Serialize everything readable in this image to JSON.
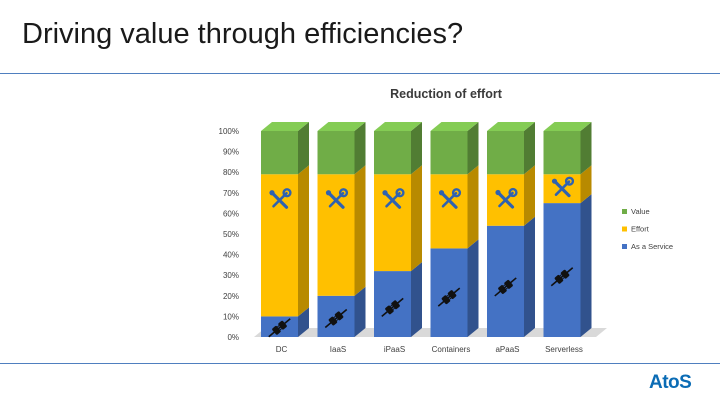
{
  "slide": {
    "title": "Driving value through efficiencies?"
  },
  "logo": {
    "text": "AtoS"
  },
  "colors": {
    "service": "#4472c4",
    "effort": "#ffc000",
    "value": "#70ad47",
    "rule": "#4f7fbf",
    "logo": "#0b6cb5"
  },
  "chart_data": {
    "type": "bar",
    "stacked": true,
    "percent": true,
    "title": "Reduction of effort",
    "categories": [
      "DC",
      "IaaS",
      "iPaaS",
      "Containers",
      "aPaaS",
      "Serverless"
    ],
    "series": [
      {
        "name": "As a Service",
        "color": "#4472c4",
        "values": [
          10,
          20,
          32,
          43,
          54,
          65
        ]
      },
      {
        "name": "Effort",
        "color": "#ffc000",
        "values": [
          69,
          59,
          47,
          36,
          25,
          14
        ]
      },
      {
        "name": "Value",
        "color": "#70ad47",
        "values": [
          21,
          21,
          21,
          21,
          21,
          21
        ]
      }
    ],
    "ylim": [
      0,
      100
    ],
    "yticks": [
      "0%",
      "10%",
      "20%",
      "30%",
      "40%",
      "50%",
      "60%",
      "70%",
      "80%",
      "90%",
      "100%"
    ],
    "legend": "right",
    "bar_icons": {
      "service": "plug-icon",
      "effort": "tools-icon"
    }
  }
}
